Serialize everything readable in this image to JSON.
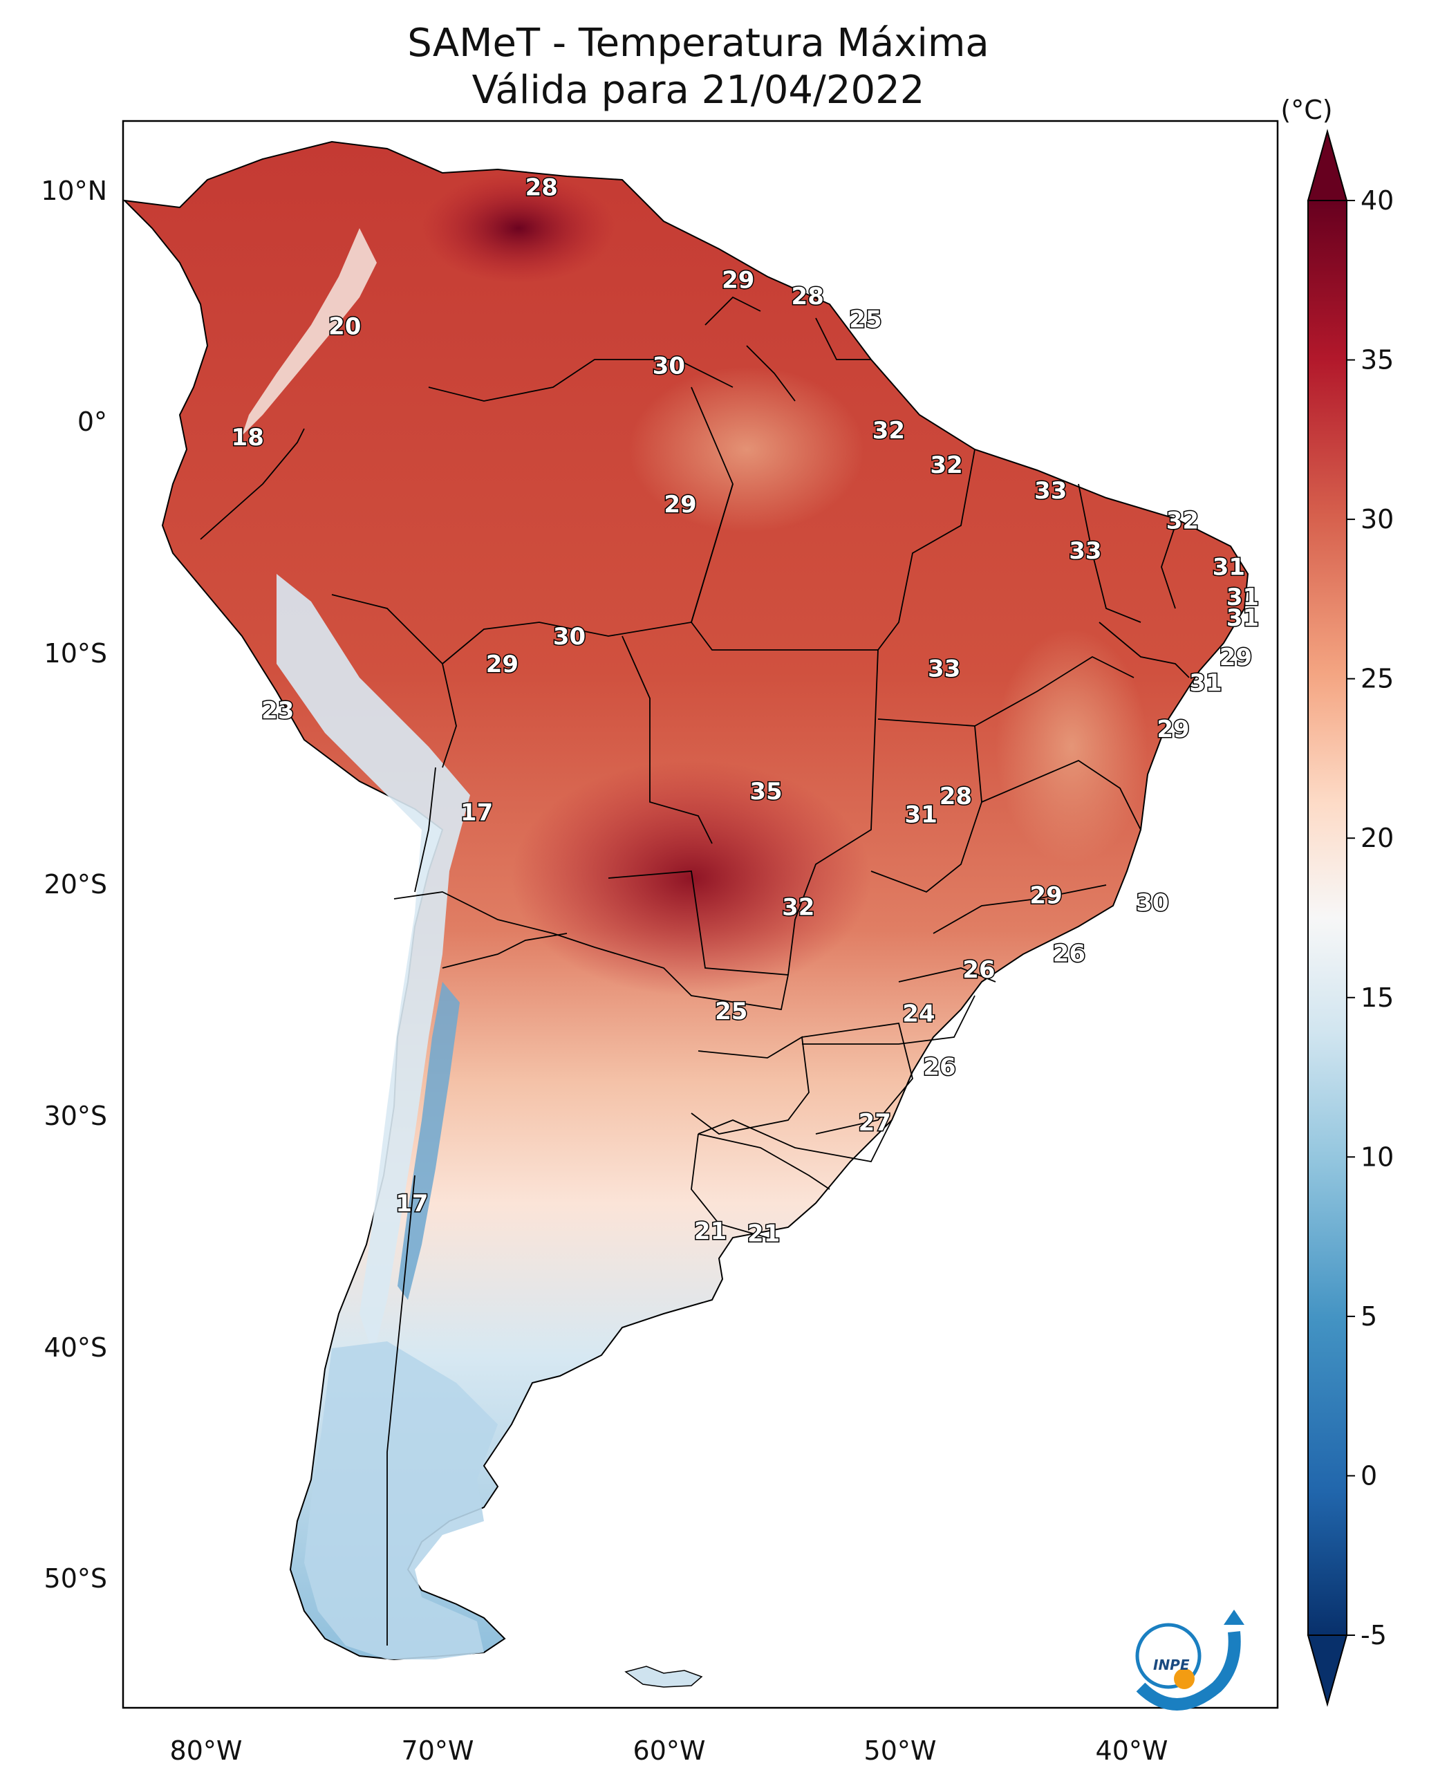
{
  "title": "SAMeT - Temperatura Máxima",
  "subtitle": "Válida para 21/04/2022",
  "map": {
    "region": "South America",
    "lon_range": [
      -83,
      -34
    ],
    "lat_range": [
      -56,
      13
    ],
    "lon_ticks": [
      "80°W",
      "70°W",
      "60°W",
      "50°W",
      "40°W"
    ],
    "lat_ticks": [
      "10°N",
      "0°",
      "10°S",
      "20°S",
      "30°S",
      "40°S",
      "50°S"
    ],
    "temperature_labels": [
      {
        "value": "28",
        "lon": -65.5,
        "lat": 10.5
      },
      {
        "value": "29",
        "lon": -57,
        "lat": 6.5
      },
      {
        "value": "28",
        "lon": -54,
        "lat": 5.8
      },
      {
        "value": "25",
        "lon": -51.5,
        "lat": 4.8
      },
      {
        "value": "20",
        "lon": -74,
        "lat": 4.5
      },
      {
        "value": "30",
        "lon": -60,
        "lat": 2.8
      },
      {
        "value": "18",
        "lon": -78.2,
        "lat": -0.3
      },
      {
        "value": "32",
        "lon": -50.5,
        "lat": 0
      },
      {
        "value": "32",
        "lon": -48,
        "lat": -1.5
      },
      {
        "value": "29",
        "lon": -59.5,
        "lat": -3.2
      },
      {
        "value": "33",
        "lon": -43.5,
        "lat": -2.6
      },
      {
        "value": "32",
        "lon": -37.8,
        "lat": -3.9
      },
      {
        "value": "33",
        "lon": -42,
        "lat": -5.2
      },
      {
        "value": "31",
        "lon": -35.8,
        "lat": -5.9
      },
      {
        "value": "31",
        "lon": -35.2,
        "lat": -7.2
      },
      {
        "value": "31",
        "lon": -35.2,
        "lat": -8.1
      },
      {
        "value": "30",
        "lon": -64.3,
        "lat": -8.9
      },
      {
        "value": "29",
        "lon": -35.5,
        "lat": -9.8
      },
      {
        "value": "29",
        "lon": -67.2,
        "lat": -10.1
      },
      {
        "value": "33",
        "lon": -48.1,
        "lat": -10.3
      },
      {
        "value": "31",
        "lon": -36.8,
        "lat": -10.9
      },
      {
        "value": "23",
        "lon": -76.9,
        "lat": -12.1
      },
      {
        "value": "29",
        "lon": -38.2,
        "lat": -12.9
      },
      {
        "value": "35",
        "lon": -55.8,
        "lat": -15.6
      },
      {
        "value": "28",
        "lon": -47.6,
        "lat": -15.8
      },
      {
        "value": "31",
        "lon": -49.1,
        "lat": -16.6
      },
      {
        "value": "17",
        "lon": -68.3,
        "lat": -16.5
      },
      {
        "value": "29",
        "lon": -43.7,
        "lat": -20.1
      },
      {
        "value": "32",
        "lon": -54.4,
        "lat": -20.6
      },
      {
        "value": "30",
        "lon": -39.1,
        "lat": -20.4
      },
      {
        "value": "26",
        "lon": -42.7,
        "lat": -22.6
      },
      {
        "value": "26",
        "lon": -46.6,
        "lat": -23.3
      },
      {
        "value": "25",
        "lon": -57.3,
        "lat": -25.1
      },
      {
        "value": "24",
        "lon": -49.2,
        "lat": -25.2
      },
      {
        "value": "26",
        "lon": -48.3,
        "lat": -27.5
      },
      {
        "value": "27",
        "lon": -51.1,
        "lat": -29.9
      },
      {
        "value": "17",
        "lon": -71.1,
        "lat": -33.4
      },
      {
        "value": "21",
        "lon": -58.2,
        "lat": -34.6
      },
      {
        "value": "21",
        "lon": -55.9,
        "lat": -34.7
      }
    ]
  },
  "colorbar": {
    "unit_label": "(°C)",
    "min": -5,
    "max": 40,
    "tick_labels": [
      "40",
      "35",
      "30",
      "25",
      "20",
      "15",
      "10",
      "5",
      "0",
      "-5"
    ],
    "colors": [
      "#08306b",
      "#2166ac",
      "#4393c3",
      "#92c5de",
      "#d1e5f0",
      "#f7f7f7",
      "#fddbc7",
      "#f4a582",
      "#d6604d",
      "#b2182b",
      "#67001f"
    ]
  },
  "logo": {
    "text": "INPE"
  }
}
